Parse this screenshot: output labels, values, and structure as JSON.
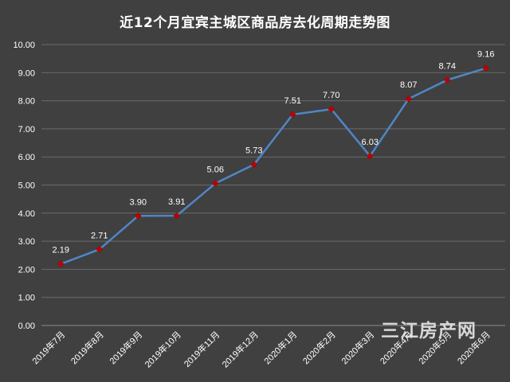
{
  "chart_data": {
    "type": "line",
    "title": "近12个月宜宾主城区商品房去化周期走势图",
    "categories": [
      "2019年7月",
      "2019年8月",
      "2019年9月",
      "2019年10月",
      "2019年11月",
      "2019年12月",
      "2020年1月",
      "2020年2月",
      "2020年3月",
      "2020年4月",
      "2020年5月",
      "2020年6月"
    ],
    "series": [
      {
        "values": [
          2.19,
          2.71,
          3.9,
          3.91,
          5.06,
          5.73,
          7.51,
          7.7,
          6.03,
          8.07,
          8.74,
          9.16
        ]
      }
    ],
    "data_labels": [
      "2.19",
      "2.71",
      "3.90",
      "3.91",
      "5.06",
      "5.73",
      "7.51",
      "7.70",
      "6.03",
      "8.07",
      "8.74",
      "9.16"
    ],
    "y_ticks": [
      "0.00",
      "1.00",
      "2.00",
      "3.00",
      "4.00",
      "5.00",
      "6.00",
      "7.00",
      "8.00",
      "9.00",
      "10.00"
    ],
    "ylim": [
      0,
      10
    ],
    "grid": true,
    "xlabel": "",
    "ylabel": "",
    "colors": {
      "background": "#404040",
      "line": "#4f86c6",
      "marker": "#c00000",
      "grid": "#6a6a6a",
      "text": "#ffffff"
    }
  },
  "watermark": "三江房产网"
}
